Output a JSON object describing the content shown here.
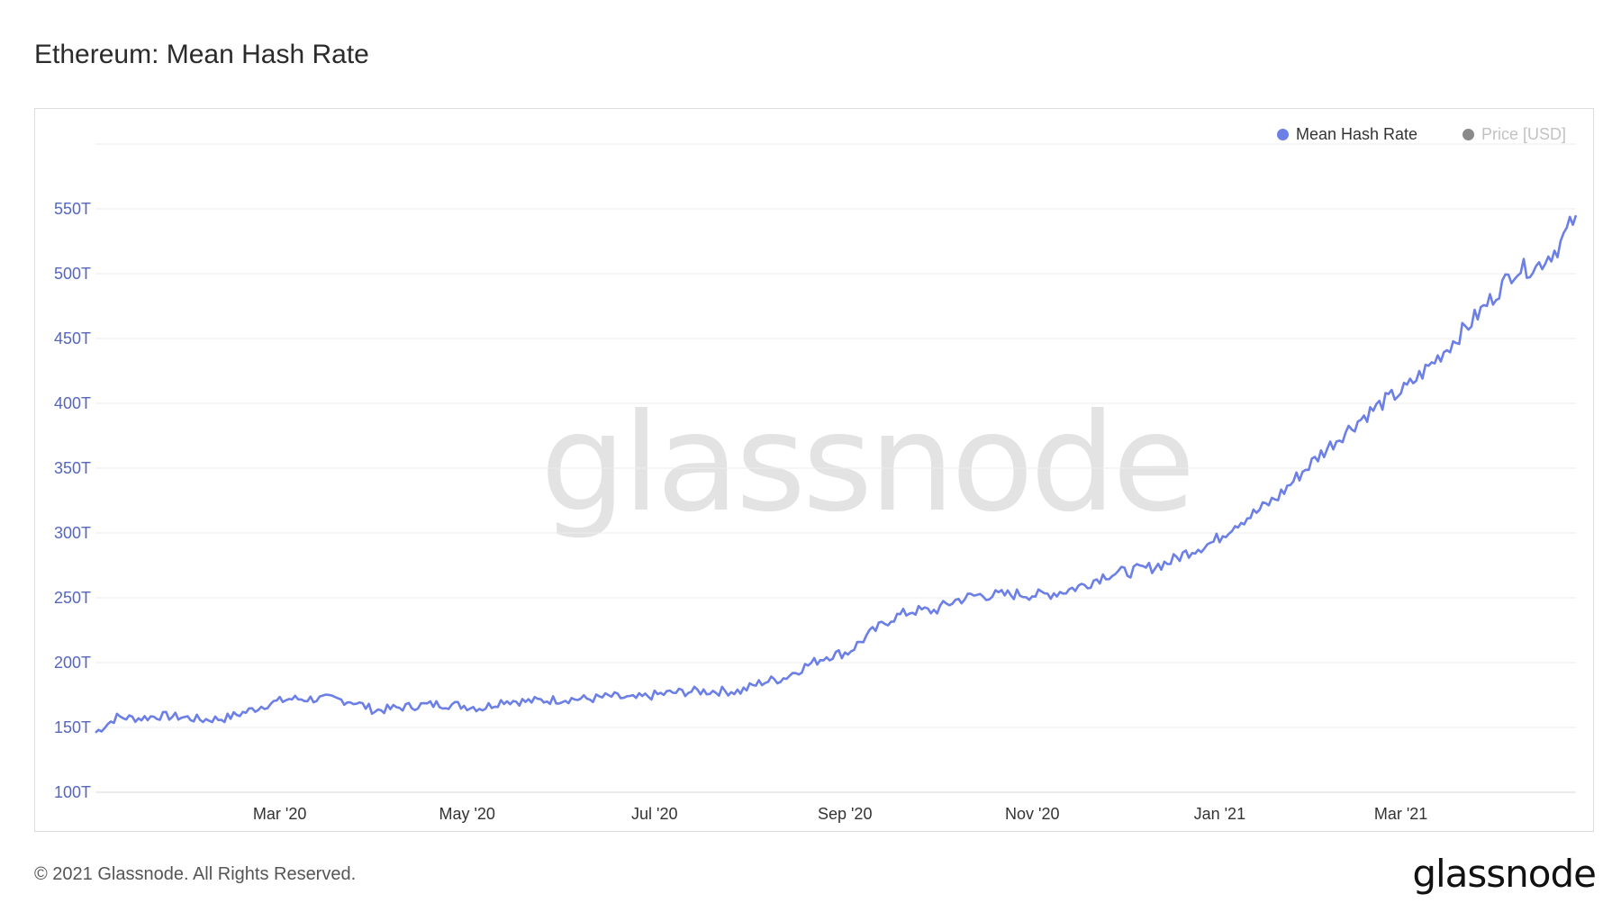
{
  "chart_data": {
    "type": "line",
    "title": "Ethereum: Mean Hash Rate",
    "x_tick_labels": [
      "Mar '20",
      "May '20",
      "Jul '20",
      "Sep '20",
      "Nov '20",
      "Jan '21",
      "Mar '21"
    ],
    "y_tick_labels": [
      "100T",
      "150T",
      "200T",
      "250T",
      "300T",
      "350T",
      "400T",
      "450T",
      "500T",
      "550T"
    ],
    "y_tick_values": [
      100,
      150,
      200,
      250,
      300,
      350,
      400,
      450,
      500,
      550
    ],
    "ylim": [
      100,
      600
    ],
    "y_unit": "T",
    "xlim": [
      "2020-01-01",
      "2021-04-27"
    ],
    "x_tick_dates": [
      "2020-03-01",
      "2020-05-01",
      "2020-07-01",
      "2020-09-01",
      "2020-11-01",
      "2021-01-01",
      "2021-03-01"
    ],
    "grid": true,
    "legend_position": "top-right",
    "series": [
      {
        "name": "Mean Hash Rate",
        "color": "#6b7fe6",
        "active": true,
        "points": [
          [
            "2020-01-01",
            146
          ],
          [
            "2020-01-08",
            158
          ],
          [
            "2020-01-15",
            157
          ],
          [
            "2020-01-22",
            159
          ],
          [
            "2020-01-29",
            158
          ],
          [
            "2020-02-05",
            156
          ],
          [
            "2020-02-12",
            157
          ],
          [
            "2020-02-19",
            162
          ],
          [
            "2020-02-26",
            168
          ],
          [
            "2020-03-04",
            172
          ],
          [
            "2020-03-11",
            172
          ],
          [
            "2020-03-18",
            172
          ],
          [
            "2020-03-25",
            170
          ],
          [
            "2020-04-01",
            163
          ],
          [
            "2020-04-08",
            165
          ],
          [
            "2020-04-15",
            167
          ],
          [
            "2020-04-22",
            168
          ],
          [
            "2020-04-29",
            167
          ],
          [
            "2020-05-06",
            165
          ],
          [
            "2020-05-13",
            171
          ],
          [
            "2020-05-20",
            170
          ],
          [
            "2020-05-27",
            171
          ],
          [
            "2020-06-03",
            172
          ],
          [
            "2020-06-10",
            172
          ],
          [
            "2020-06-17",
            174
          ],
          [
            "2020-06-24",
            172
          ],
          [
            "2020-07-01",
            175
          ],
          [
            "2020-07-08",
            177
          ],
          [
            "2020-07-15",
            178
          ],
          [
            "2020-07-22",
            178
          ],
          [
            "2020-07-29",
            178
          ],
          [
            "2020-08-05",
            185
          ],
          [
            "2020-08-12",
            188
          ],
          [
            "2020-08-19",
            197
          ],
          [
            "2020-08-26",
            205
          ],
          [
            "2020-09-02",
            208
          ],
          [
            "2020-09-09",
            222
          ],
          [
            "2020-09-16",
            234
          ],
          [
            "2020-09-23",
            240
          ],
          [
            "2020-09-30",
            240
          ],
          [
            "2020-10-07",
            248
          ],
          [
            "2020-10-14",
            252
          ],
          [
            "2020-10-21",
            252
          ],
          [
            "2020-10-28",
            253
          ],
          [
            "2020-11-04",
            252
          ],
          [
            "2020-11-11",
            255
          ],
          [
            "2020-11-18",
            260
          ],
          [
            "2020-11-25",
            268
          ],
          [
            "2020-12-02",
            270
          ],
          [
            "2020-12-09",
            273
          ],
          [
            "2020-12-16",
            278
          ],
          [
            "2020-12-23",
            287
          ],
          [
            "2020-12-30",
            293
          ],
          [
            "2021-01-06",
            307
          ],
          [
            "2021-01-13",
            316
          ],
          [
            "2021-01-20",
            328
          ],
          [
            "2021-01-27",
            345
          ],
          [
            "2021-02-03",
            361
          ],
          [
            "2021-02-10",
            376
          ],
          [
            "2021-02-17",
            390
          ],
          [
            "2021-02-24",
            402
          ],
          [
            "2021-03-03",
            412
          ],
          [
            "2021-03-10",
            428
          ],
          [
            "2021-03-17",
            445
          ],
          [
            "2021-03-24",
            463
          ],
          [
            "2021-03-31",
            482
          ],
          [
            "2021-04-07",
            503
          ],
          [
            "2021-04-14",
            505
          ],
          [
            "2021-04-21",
            520
          ],
          [
            "2021-04-27",
            545
          ]
        ]
      },
      {
        "name": "Price [USD]",
        "color": "#8a8a8a",
        "active": false,
        "points": []
      }
    ]
  },
  "watermark": "glassnode",
  "footer": {
    "copyright": "© 2021 Glassnode. All Rights Reserved.",
    "logo": "glassnode"
  }
}
